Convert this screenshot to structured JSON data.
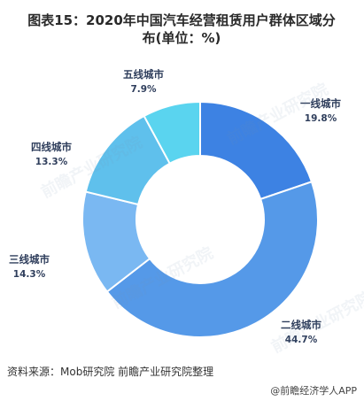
{
  "title_line1": "图表15：2020年中国汽车经营租赁用户群体区域分",
  "title_line2": "布(单位：%)",
  "source": "资料来源：Mob研究院 前瞻产业研究院整理",
  "credit": "@前瞻经济学人APP",
  "watermark": "前瞻产业研究院",
  "chart_data": {
    "type": "pie",
    "donut": true,
    "legend": "none",
    "slices": [
      {
        "name": "一线城市",
        "value": 19.8,
        "label": "19.8%",
        "color": "#3d82e3"
      },
      {
        "name": "二线城市",
        "value": 44.7,
        "label": "44.7%",
        "color": "#5599e8"
      },
      {
        "name": "三线城市",
        "value": 14.3,
        "label": "14.3%",
        "color": "#7ab8f2"
      },
      {
        "name": "四线城市",
        "value": 13.3,
        "label": "13.3%",
        "color": "#5fc0ec"
      },
      {
        "name": "五线城市",
        "value": 7.9,
        "label": "7.9%",
        "color": "#5ad4ef"
      }
    ]
  }
}
